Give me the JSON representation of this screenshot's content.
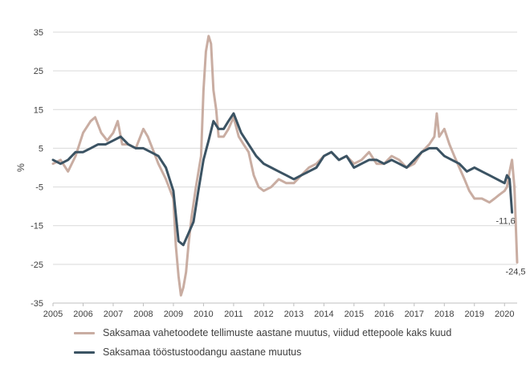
{
  "chart_data": {
    "type": "line",
    "ylabel": "%",
    "ylim": [
      -35,
      35
    ],
    "y_ticks": [
      35,
      25,
      15,
      5,
      -5,
      -15,
      -25,
      -35
    ],
    "x_ticks": [
      "2005",
      "2006",
      "2007",
      "2008",
      "2009",
      "2010",
      "2011",
      "2012",
      "2013",
      "2014",
      "2015",
      "2016",
      "2017",
      "2018",
      "2019",
      "2020"
    ],
    "xlim": [
      2005.0,
      2020.42
    ],
    "grid": "horizontal",
    "legend_position": "bottom",
    "series": [
      {
        "name": "Saksamaa vahetoodete tellimuste aastane muutus, viidud ettepoole kaks kuud",
        "color": "#c9ada2",
        "x": [
          2005.0,
          2005.25,
          2005.5,
          2005.75,
          2006.0,
          2006.25,
          2006.4,
          2006.6,
          2006.8,
          2007.0,
          2007.15,
          2007.3,
          2007.5,
          2007.75,
          2008.0,
          2008.15,
          2008.35,
          2008.5,
          2008.75,
          2009.0,
          2009.08,
          2009.17,
          2009.25,
          2009.33,
          2009.42,
          2009.5,
          2009.6,
          2009.75,
          2009.92,
          2010.0,
          2010.08,
          2010.17,
          2010.25,
          2010.33,
          2010.42,
          2010.5,
          2010.67,
          2010.83,
          2011.0,
          2011.17,
          2011.33,
          2011.5,
          2011.67,
          2011.83,
          2012.0,
          2012.25,
          2012.5,
          2012.75,
          2013.0,
          2013.25,
          2013.5,
          2013.75,
          2014.0,
          2014.25,
          2014.5,
          2014.75,
          2015.0,
          2015.25,
          2015.5,
          2015.75,
          2016.0,
          2016.25,
          2016.5,
          2016.75,
          2017.0,
          2017.25,
          2017.5,
          2017.67,
          2017.75,
          2017.83,
          2018.0,
          2018.17,
          2018.33,
          2018.5,
          2018.67,
          2018.83,
          2019.0,
          2019.25,
          2019.5,
          2019.67,
          2019.83,
          2020.0,
          2020.08,
          2020.17,
          2020.25,
          2020.33,
          2020.42
        ],
        "y": [
          1,
          2,
          -1,
          3,
          9,
          12,
          13,
          9,
          7,
          9,
          12,
          6,
          6,
          5,
          10,
          8,
          4,
          1,
          -3,
          -8,
          -20,
          -28,
          -33,
          -31,
          -27,
          -20,
          -13,
          -5,
          3,
          20,
          30,
          34,
          32,
          20,
          15,
          8,
          8,
          10,
          13,
          8,
          6,
          4,
          -2,
          -5,
          -6,
          -5,
          -3,
          -4,
          -4,
          -2,
          0,
          1,
          3,
          4,
          2,
          3,
          1,
          2,
          4,
          1,
          1,
          3,
          2,
          0,
          1,
          4,
          6,
          8,
          14,
          8,
          10,
          6,
          3,
          0,
          -3,
          -6,
          -8,
          -8,
          -9,
          -8,
          -7,
          -6,
          -5,
          -1,
          2,
          -5,
          -24.5
        ]
      },
      {
        "name": "Saksamaa tööstustoodangu aastane muutus",
        "color": "#3b5363",
        "x": [
          2005.0,
          2005.25,
          2005.5,
          2005.75,
          2006.0,
          2006.25,
          2006.5,
          2006.75,
          2007.0,
          2007.25,
          2007.5,
          2007.75,
          2008.0,
          2008.25,
          2008.5,
          2008.75,
          2009.0,
          2009.17,
          2009.33,
          2009.5,
          2009.67,
          2009.83,
          2010.0,
          2010.17,
          2010.33,
          2010.5,
          2010.67,
          2010.83,
          2011.0,
          2011.25,
          2011.5,
          2011.75,
          2012.0,
          2012.25,
          2012.5,
          2012.75,
          2013.0,
          2013.25,
          2013.5,
          2013.75,
          2014.0,
          2014.25,
          2014.5,
          2014.75,
          2015.0,
          2015.25,
          2015.5,
          2015.75,
          2016.0,
          2016.25,
          2016.5,
          2016.75,
          2017.0,
          2017.25,
          2017.5,
          2017.75,
          2018.0,
          2018.25,
          2018.5,
          2018.75,
          2019.0,
          2019.25,
          2019.5,
          2019.75,
          2020.0,
          2020.08,
          2020.17,
          2020.25
        ],
        "y": [
          2,
          1,
          2,
          4,
          4,
          5,
          6,
          6,
          7,
          8,
          6,
          5,
          5,
          4,
          3,
          0,
          -6,
          -19,
          -20,
          -17,
          -14,
          -6,
          2,
          7,
          12,
          10,
          10,
          12,
          14,
          9,
          6,
          3,
          1,
          0,
          -1,
          -2,
          -3,
          -2,
          -1,
          0,
          3,
          4,
          2,
          3,
          0,
          1,
          2,
          2,
          1,
          2,
          1,
          0,
          2,
          4,
          5,
          5,
          3,
          2,
          1,
          -1,
          0,
          -1,
          -2,
          -3,
          -4,
          -2,
          -3,
          -11.6
        ]
      }
    ],
    "data_labels": [
      "-11,6",
      "-24,5"
    ]
  }
}
